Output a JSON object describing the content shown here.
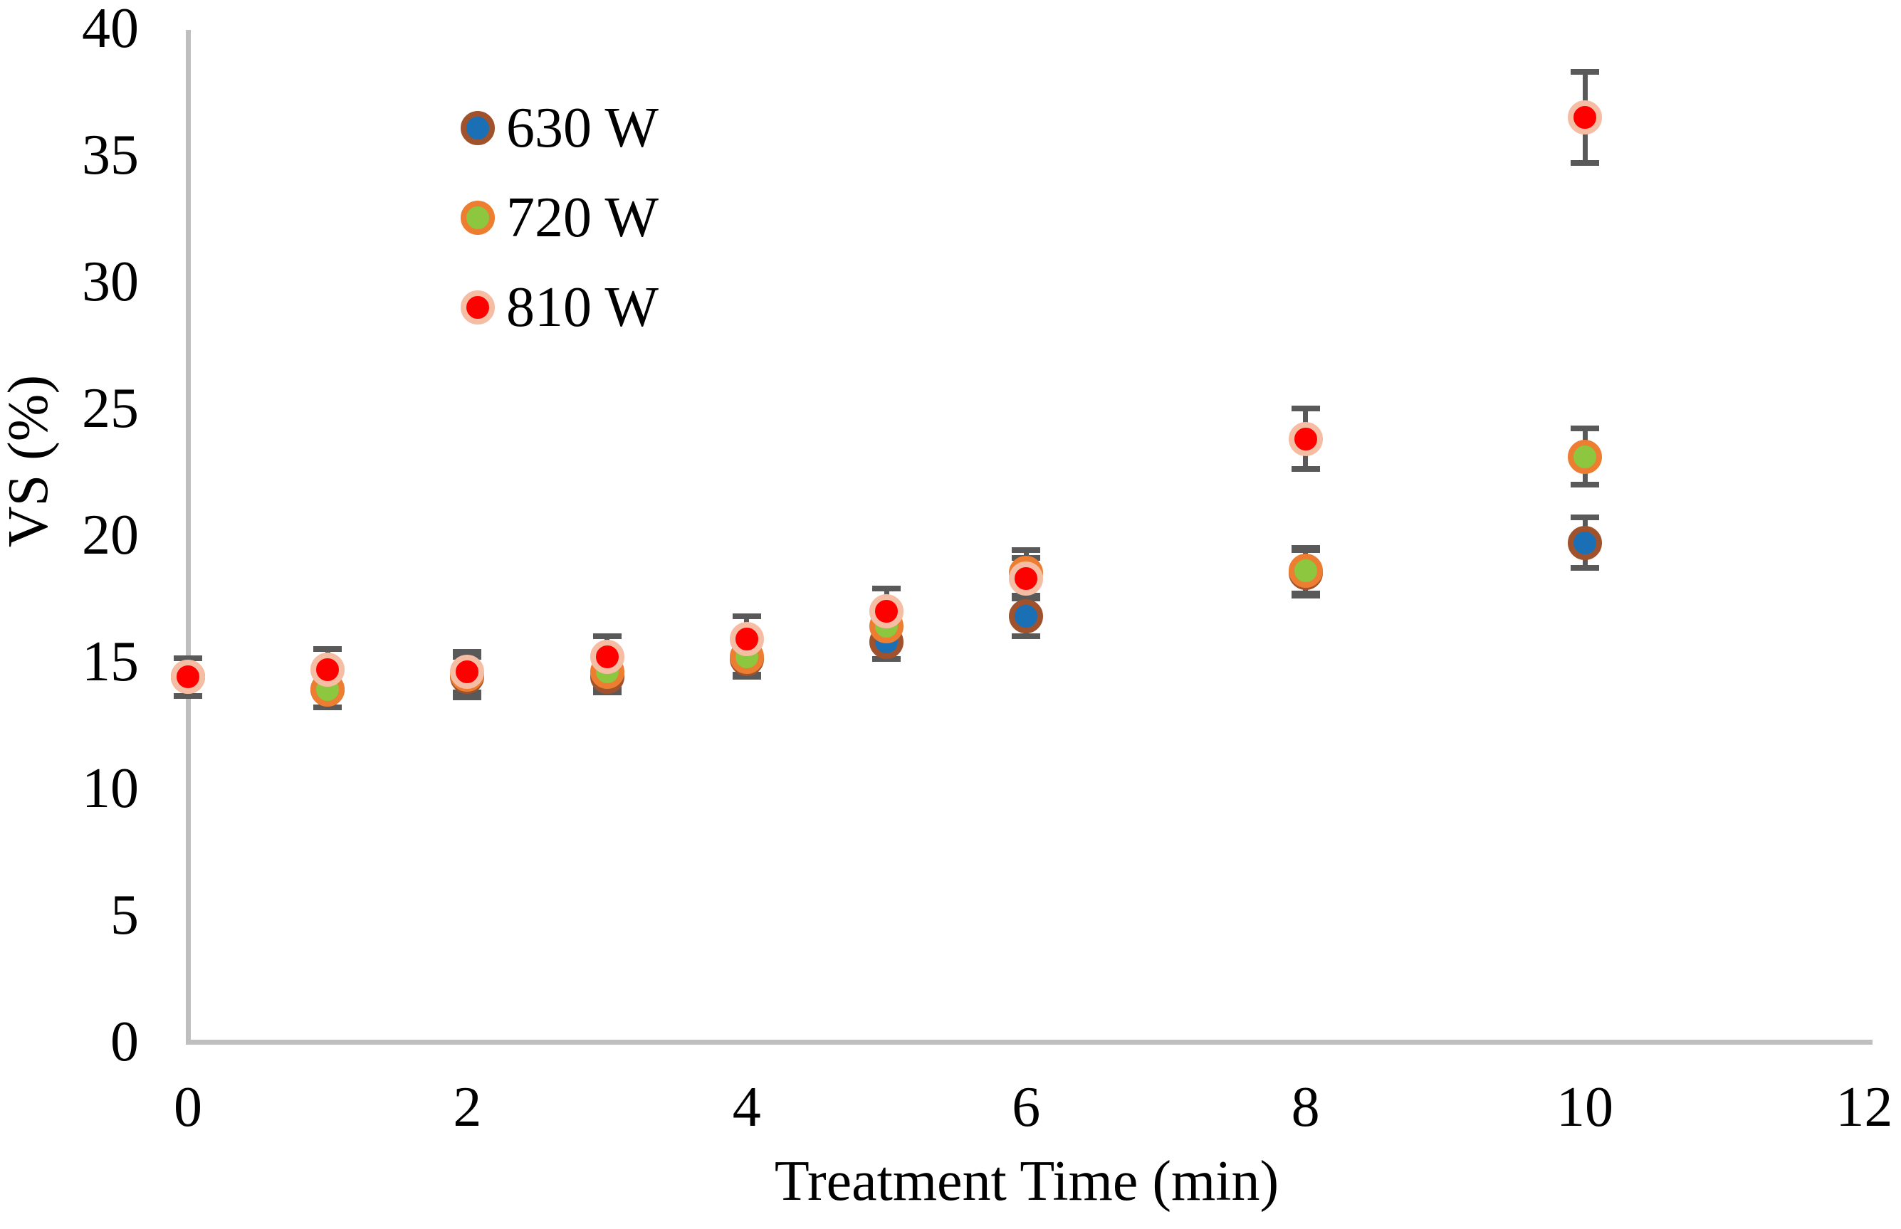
{
  "figure": {
    "background": "#FFFFFF",
    "axis_color": "#BFBFBF",
    "error_bar_color": "#595959",
    "text_color": "#000000"
  },
  "chart_data": {
    "type": "scatter",
    "title": "",
    "xlabel": "Treatment Time (min)",
    "ylabel": "VS (%)",
    "xlim": [
      0,
      12
    ],
    "ylim": [
      0,
      40
    ],
    "x_ticks": [
      0,
      2,
      4,
      6,
      8,
      10,
      12
    ],
    "y_ticks": [
      0,
      5,
      10,
      15,
      20,
      25,
      30,
      35,
      40
    ],
    "grid": false,
    "error_bars": true,
    "legend_position": "upper-left-inside",
    "x": [
      0,
      1,
      2,
      3,
      4,
      5,
      6,
      8,
      10
    ],
    "series": [
      {
        "name": "630 W",
        "fill": "#1B6FB5",
        "ring": "#A0522D",
        "values": [
          14.4,
          13.9,
          14.4,
          14.4,
          15.1,
          15.8,
          16.8,
          18.5,
          19.7
        ],
        "errors": [
          0.75,
          0.7,
          0.8,
          0.6,
          0.7,
          0.7,
          0.8,
          0.9,
          1.0
        ]
      },
      {
        "name": "720 W",
        "fill": "#8DC63F",
        "ring": "#ED7D31",
        "values": [
          14.4,
          13.9,
          14.5,
          14.6,
          15.2,
          16.4,
          18.5,
          18.6,
          23.1
        ],
        "errors": [
          0.75,
          0.7,
          0.7,
          0.7,
          0.7,
          0.7,
          0.9,
          0.9,
          1.1
        ]
      },
      {
        "name": "810 W",
        "fill": "#FF0000",
        "ring": "#F4BDA4",
        "values": [
          14.4,
          14.7,
          14.6,
          15.2,
          15.9,
          17.0,
          18.3,
          23.8,
          36.5
        ],
        "errors": [
          0.75,
          0.8,
          0.8,
          0.8,
          0.9,
          0.9,
          0.8,
          1.2,
          1.8
        ]
      }
    ]
  }
}
